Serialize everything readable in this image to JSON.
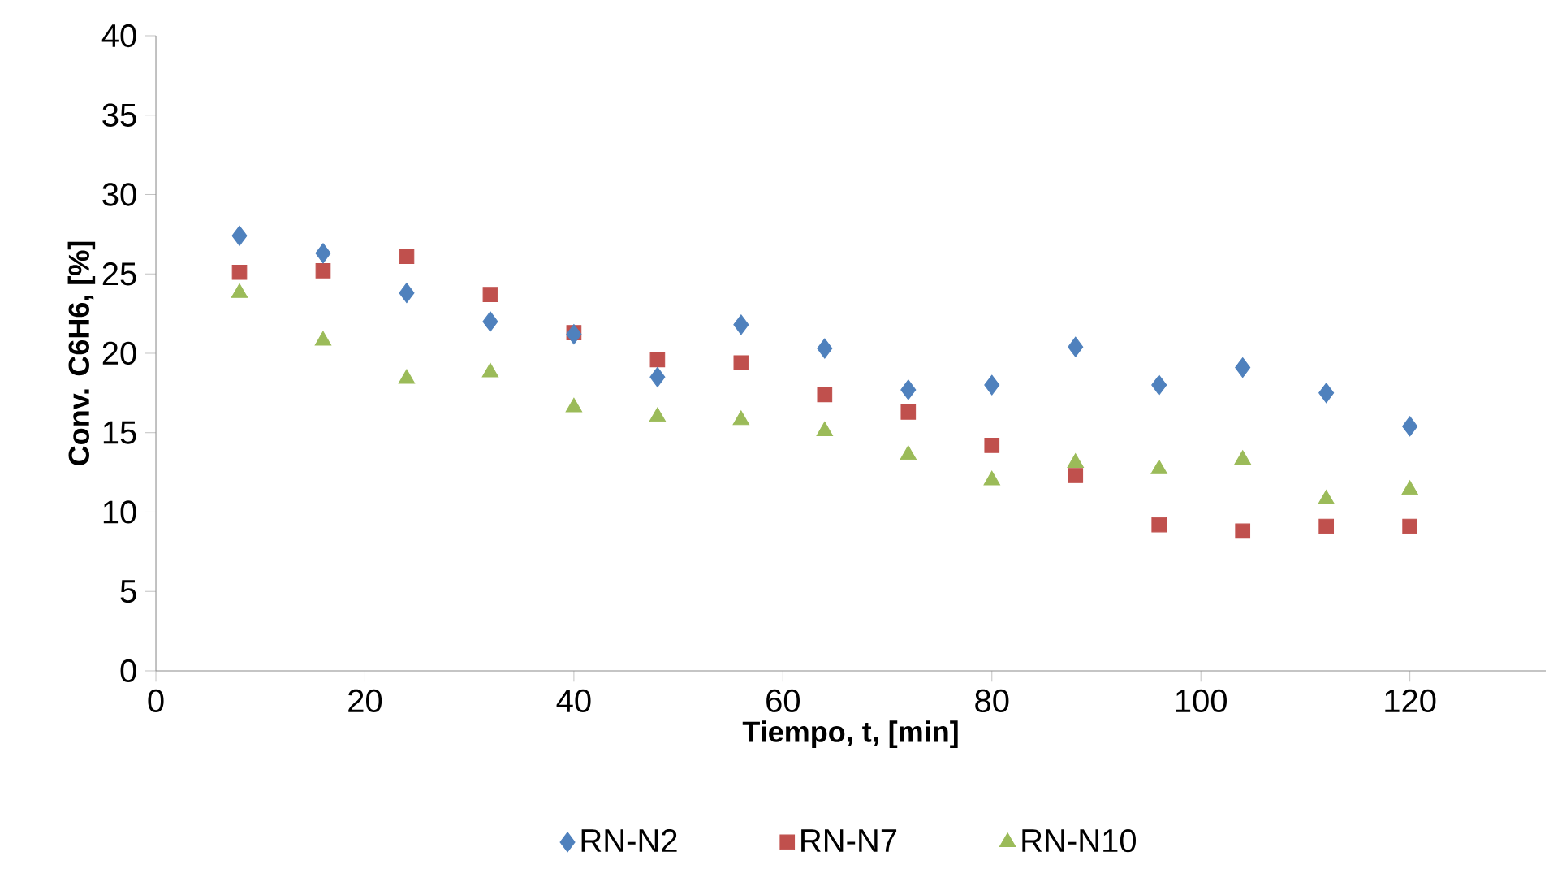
{
  "chart_data": {
    "type": "scatter",
    "xlabel": "Tiempo, t, [min]",
    "ylabel": "Conv. C6H6, [%]",
    "x": [
      8,
      16,
      24,
      32,
      40,
      48,
      56,
      64,
      72,
      80,
      88,
      96,
      104,
      112,
      120
    ],
    "series": [
      {
        "name": "RN-N2",
        "color": "#4f81bd",
        "marker": "diamond",
        "values": [
          27.4,
          26.3,
          23.8,
          22.0,
          21.2,
          18.5,
          21.8,
          20.3,
          17.7,
          18.0,
          20.4,
          18.0,
          19.1,
          17.5,
          15.4
        ]
      },
      {
        "name": "RN-N7",
        "color": "#c0504d",
        "marker": "square",
        "values": [
          25.1,
          25.2,
          26.1,
          23.7,
          21.3,
          19.6,
          19.4,
          17.4,
          16.3,
          14.2,
          12.3,
          9.2,
          8.8,
          9.1,
          9.1
        ]
      },
      {
        "name": "RN-N10",
        "color": "#9bbb59",
        "marker": "triangle",
        "values": [
          23.8,
          20.8,
          18.4,
          18.8,
          16.6,
          16.0,
          15.8,
          15.1,
          13.6,
          12.0,
          13.1,
          12.7,
          13.3,
          10.8,
          11.4
        ]
      }
    ],
    "xlim": [
      0,
      133
    ],
    "xticks": [
      0,
      20,
      40,
      60,
      80,
      100,
      120
    ],
    "ylim": [
      0,
      40
    ],
    "yticks": [
      0,
      5,
      10,
      15,
      20,
      25,
      30,
      35,
      40
    ],
    "grid": false,
    "legend": "bottom"
  }
}
